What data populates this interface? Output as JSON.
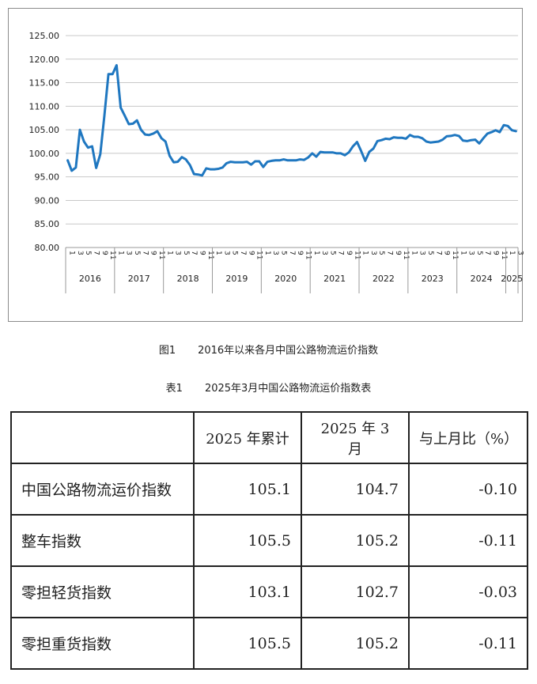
{
  "figure": {
    "number": "图1",
    "title": "2016年以来各月中国公路物流运价指数"
  },
  "chart_data": {
    "type": "line",
    "title": "",
    "xlabel": "",
    "ylabel": "",
    "ylim": [
      80,
      125
    ],
    "yticks": [
      "80.00",
      "85.00",
      "90.00",
      "95.00",
      "100.00",
      "105.00",
      "110.00",
      "115.00",
      "120.00",
      "125.00"
    ],
    "grid": true,
    "line_color": "#1f77c0",
    "years": [
      "2016",
      "2017",
      "2018",
      "2019",
      "2020",
      "2021",
      "2022",
      "2023",
      "2024",
      "2025"
    ],
    "year_month_counts": [
      12,
      12,
      12,
      12,
      12,
      12,
      12,
      12,
      12,
      3
    ],
    "month_tick_labels": [
      "1",
      "3",
      "5",
      "7",
      "9",
      "11"
    ],
    "series": [
      {
        "values": [
          98.5,
          96.3,
          97.0,
          105.0,
          102.5,
          101.2,
          101.5,
          96.9,
          99.8,
          108.0,
          116.8,
          116.8,
          118.7,
          109.7,
          108.0,
          106.2,
          106.3,
          107.0,
          105.0,
          104.0,
          103.9,
          104.2,
          104.7,
          103.2,
          102.5,
          99.5,
          98.1,
          98.2,
          99.2,
          98.7,
          97.5,
          95.6,
          95.5,
          95.3,
          96.8,
          96.6,
          96.6,
          96.7,
          97.0,
          97.9,
          98.2,
          98.1,
          98.1,
          98.1,
          98.2,
          97.6,
          98.3,
          98.3,
          97.1,
          98.2,
          98.4,
          98.5,
          98.5,
          98.7,
          98.5,
          98.5,
          98.5,
          98.7,
          98.6,
          99.1,
          100.0,
          99.3,
          100.3,
          100.2,
          100.2,
          100.2,
          100.0,
          100.0,
          99.6,
          100.2,
          101.5,
          102.4,
          100.5,
          98.4,
          100.3,
          101.0,
          102.6,
          102.8,
          103.1,
          103.0,
          103.4,
          103.3,
          103.3,
          103.1,
          103.9,
          103.5,
          103.5,
          103.2,
          102.5,
          102.3,
          102.4,
          102.5,
          102.9,
          103.6,
          103.7,
          103.9,
          103.7,
          102.7,
          102.6,
          102.8,
          102.9,
          102.1,
          103.2,
          104.2,
          104.5,
          104.9,
          104.5,
          106.0,
          105.8,
          104.9,
          104.7
        ]
      }
    ]
  },
  "table": {
    "number": "表1",
    "title": "2025年3月中国公路物流运价指数表",
    "headers": [
      "",
      "2025 年累计",
      "2025 年 3 月",
      "与上月比（%）"
    ],
    "rows": [
      [
        "中国公路物流运价指数",
        "105.1",
        "104.7",
        "-0.10"
      ],
      [
        "整车指数",
        "105.5",
        "105.2",
        "-0.11"
      ],
      [
        "零担轻货指数",
        "103.1",
        "102.7",
        "-0.03"
      ],
      [
        "零担重货指数",
        "105.5",
        "105.2",
        "-0.11"
      ]
    ]
  }
}
